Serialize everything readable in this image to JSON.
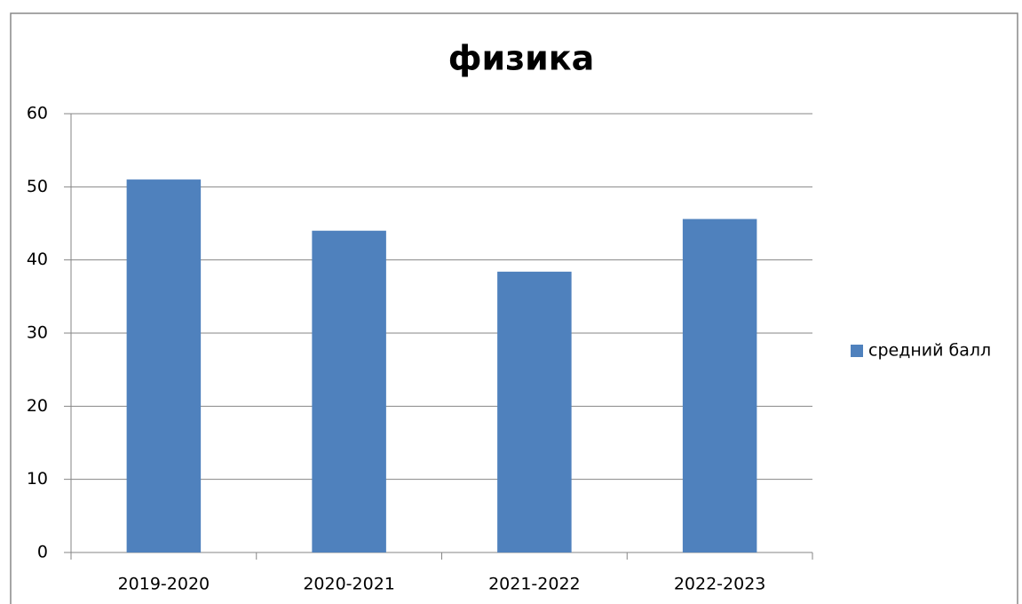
{
  "chart_data": {
    "type": "bar",
    "title": "физика",
    "categories": [
      "2019-2020",
      "2020-2021",
      "2021-2022",
      "2022-2023"
    ],
    "series": [
      {
        "name": "средний балл",
        "color": "#4f81bd",
        "values": [
          51,
          44,
          38.4,
          45.6
        ]
      }
    ],
    "ylim": [
      0,
      60
    ],
    "yticks": [
      0,
      10,
      20,
      30,
      40,
      50,
      60
    ],
    "grid": true,
    "legend": "right"
  }
}
